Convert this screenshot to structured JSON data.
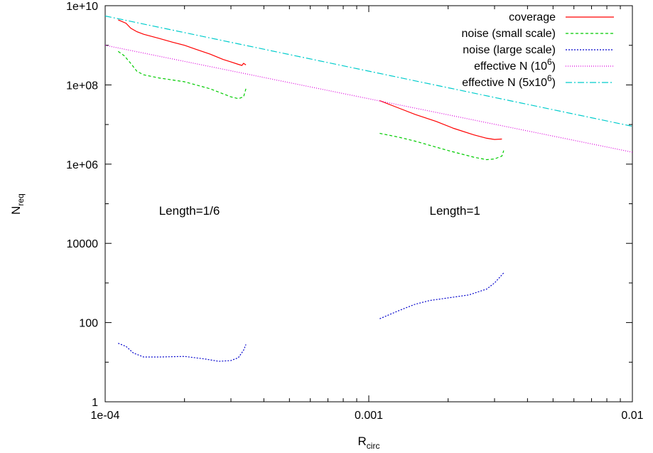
{
  "chart_data": {
    "type": "line",
    "xlabel": "R",
    "xlabel_subscript": "circ",
    "ylabel": "N",
    "ylabel_subscript": "req",
    "x_scale": "log",
    "y_scale": "log",
    "xlim": [
      0.0001,
      0.01
    ],
    "ylim": [
      1,
      10000000000
    ],
    "x_ticks": [
      {
        "value": 0.0001,
        "label": "1e-04"
      },
      {
        "value": 0.001,
        "label": "0.001"
      },
      {
        "value": 0.01,
        "label": "0.01"
      }
    ],
    "y_ticks": [
      {
        "value": 1,
        "label": "1"
      },
      {
        "value": 100,
        "label": "100"
      },
      {
        "value": 10000,
        "label": "10000"
      },
      {
        "value": 1000000,
        "label": "1e+06"
      },
      {
        "value": 100000000,
        "label": "1e+08"
      },
      {
        "value": 10000000000,
        "label": "1e+10"
      }
    ],
    "grid": false,
    "legend_position": "top-right",
    "annotations": [
      {
        "text": "Length=1/6",
        "x": 0.00016,
        "y": 10000
      },
      {
        "text": "Length=1",
        "x": 0.0017,
        "y": 10000
      }
    ],
    "series": [
      {
        "name": "coverage",
        "legend_base": "coverage",
        "legend_sup": "",
        "legend_tail": "",
        "color": "#ff0000",
        "dash": "",
        "segments": [
          [
            [
              0.000112,
              4400000000
            ],
            [
              0.00012,
              3600000000
            ],
            [
              0.000125,
              2700000000
            ],
            [
              0.000132,
              2200000000
            ],
            [
              0.00014,
              1900000000
            ],
            [
              0.00016,
              1500000000
            ],
            [
              0.00018,
              1200000000
            ],
            [
              0.0002,
              1000000000
            ],
            [
              0.00022,
              800000000
            ],
            [
              0.00025,
              600000000
            ],
            [
              0.00028,
              440000000
            ],
            [
              0.0003,
              380000000
            ],
            [
              0.00032,
              330000000
            ],
            [
              0.00033,
              310000000
            ],
            [
              0.000335,
              350000000
            ],
            [
              0.000342,
              320000000
            ]
          ],
          [
            [
              0.0011,
              40000000
            ],
            [
              0.0013,
              26000000
            ],
            [
              0.0015,
              18000000
            ],
            [
              0.0018,
              12000000
            ],
            [
              0.0021,
              8000000
            ],
            [
              0.0025,
              5500000
            ],
            [
              0.0028,
              4500000
            ],
            [
              0.003,
              4200000
            ],
            [
              0.0032,
              4300000
            ]
          ]
        ]
      },
      {
        "name": "noise (small scale)",
        "legend_base": "noise (small scale)",
        "legend_sup": "",
        "legend_tail": "",
        "color": "#00cc00",
        "dash": "4,3",
        "segments": [
          [
            [
              0.000112,
              700000000
            ],
            [
              0.000118,
              550000000
            ],
            [
              0.000125,
              350000000
            ],
            [
              0.000132,
              220000000
            ],
            [
              0.00014,
              180000000
            ],
            [
              0.00016,
              150000000
            ],
            [
              0.0002,
              120000000
            ],
            [
              0.00025,
              80000000
            ],
            [
              0.0003,
              50000000
            ],
            [
              0.00032,
              45000000
            ],
            [
              0.000335,
              50000000
            ],
            [
              0.000342,
              80000000
            ]
          ],
          [
            [
              0.0011,
              6000000
            ],
            [
              0.0013,
              4800000
            ],
            [
              0.0015,
              3800000
            ],
            [
              0.002,
              2200000
            ],
            [
              0.0025,
              1500000
            ],
            [
              0.0028,
              1300000
            ],
            [
              0.003,
              1350000
            ],
            [
              0.0032,
              1600000
            ],
            [
              0.00325,
              2200000
            ]
          ]
        ]
      },
      {
        "name": "noise (large scale)",
        "legend_base": "noise (large scale)",
        "legend_sup": "",
        "legend_tail": "",
        "color": "#0000cc",
        "dash": "2,2",
        "segments": [
          [
            [
              0.000112,
              30
            ],
            [
              0.00012,
              25
            ],
            [
              0.000128,
              17
            ],
            [
              0.00014,
              13.5
            ],
            [
              0.00016,
              13.5
            ],
            [
              0.0002,
              14
            ],
            [
              0.00024,
              12
            ],
            [
              0.00027,
              10.5
            ],
            [
              0.0003,
              11
            ],
            [
              0.00032,
              13
            ],
            [
              0.000335,
              20
            ],
            [
              0.000342,
              28
            ]
          ],
          [
            [
              0.0011,
              125
            ],
            [
              0.0013,
              200
            ],
            [
              0.0015,
              290
            ],
            [
              0.0017,
              360
            ],
            [
              0.002,
              420
            ],
            [
              0.0024,
              500
            ],
            [
              0.0028,
              700
            ],
            [
              0.003,
              1000
            ],
            [
              0.00325,
              1800
            ]
          ]
        ]
      },
      {
        "name": "effective N (10^6)",
        "legend_base": "effective N (10",
        "legend_sup": "6",
        "legend_tail": ")",
        "color": "#dd00dd",
        "dash": "1,2",
        "segments": [
          [
            [
              0.0001,
              1000000000
            ],
            [
              0.01,
              2000000
            ]
          ]
        ]
      },
      {
        "name": "effective N (5x10^6)",
        "legend_base": "effective N (5x10",
        "legend_sup": "6",
        "legend_tail": ")",
        "color": "#00cccc",
        "dash": "9,3,2,3",
        "segments": [
          [
            [
              0.0001,
              5500000000
            ],
            [
              0.01,
              9000000
            ]
          ]
        ]
      }
    ]
  }
}
